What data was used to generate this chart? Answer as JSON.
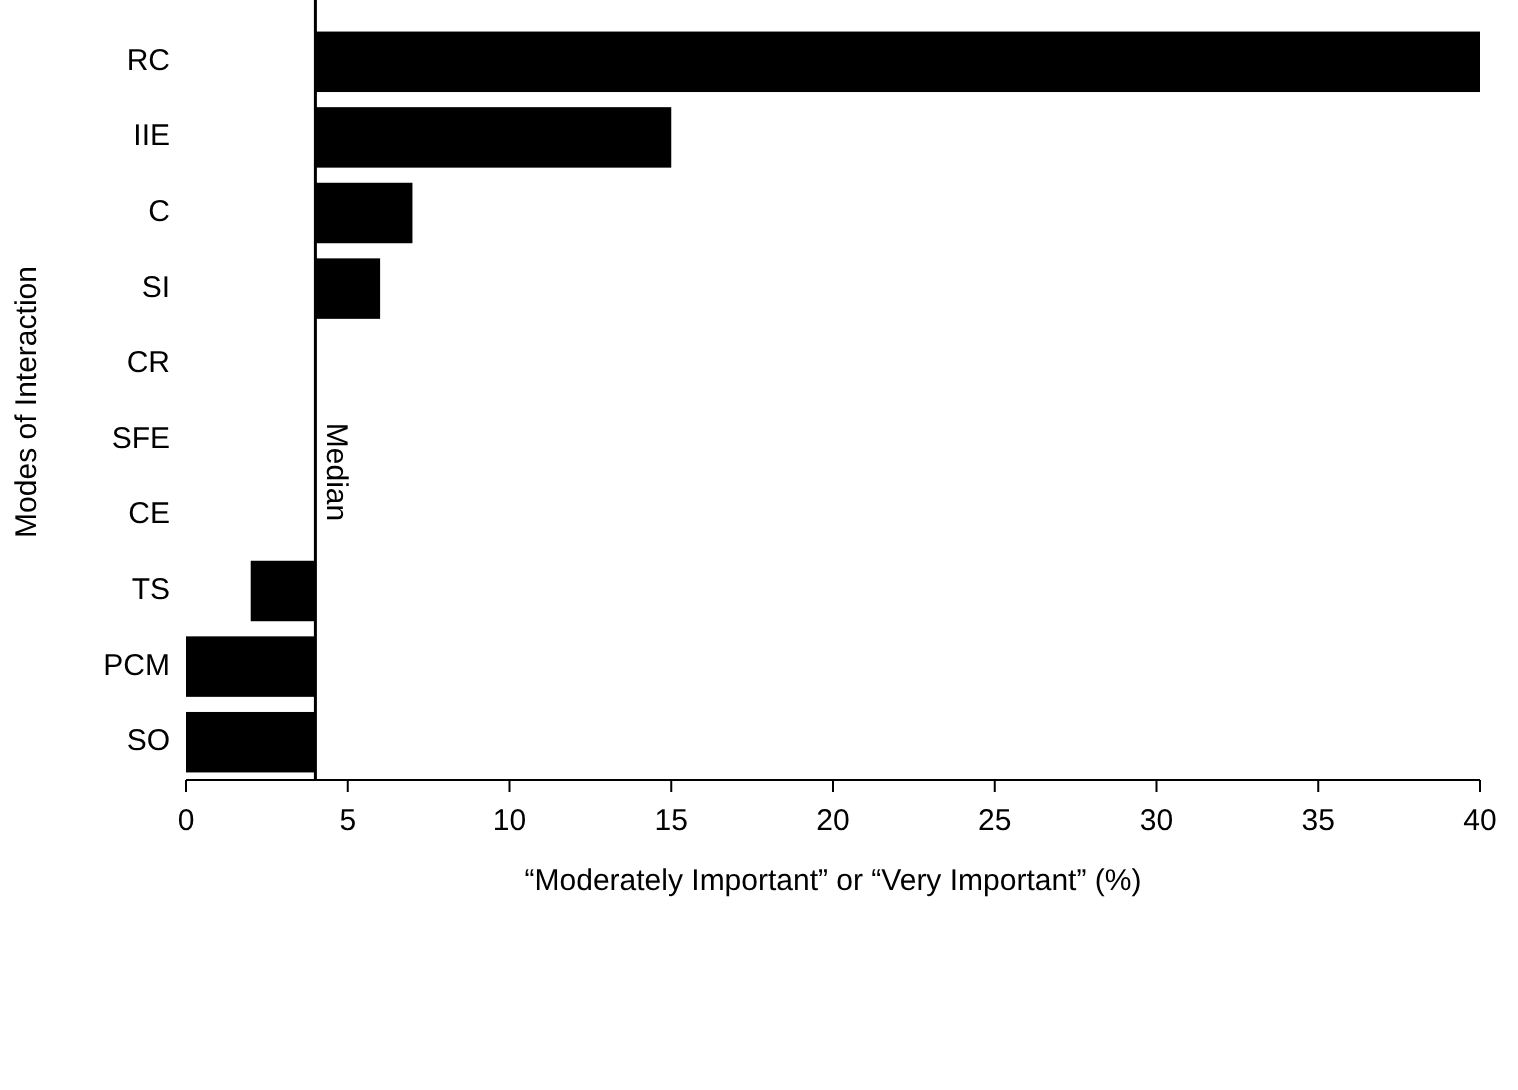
{
  "chart_data": {
    "type": "bar",
    "orientation": "horizontal",
    "xlabel": "“Moderately Important” or “Very Important” (%)",
    "ylabel": "Modes of Interaction",
    "categories": [
      "RC",
      "IIE",
      "C",
      "SI",
      "CR",
      "SFE",
      "CE",
      "TS",
      "PCM",
      "SO"
    ],
    "base": [
      4,
      4,
      4,
      4,
      null,
      null,
      null,
      4,
      4,
      4
    ],
    "values": [
      36,
      11,
      3,
      2,
      null,
      null,
      null,
      -2,
      -4,
      -4
    ],
    "color": "#000000",
    "xlim": [
      0,
      40
    ],
    "xticks": [
      0,
      5,
      10,
      15,
      20,
      25,
      30,
      35,
      40
    ],
    "ref_lines": [
      {
        "axis": "x",
        "value": 4,
        "label": "Median",
        "color": "#000000"
      }
    ],
    "grid": false
  }
}
